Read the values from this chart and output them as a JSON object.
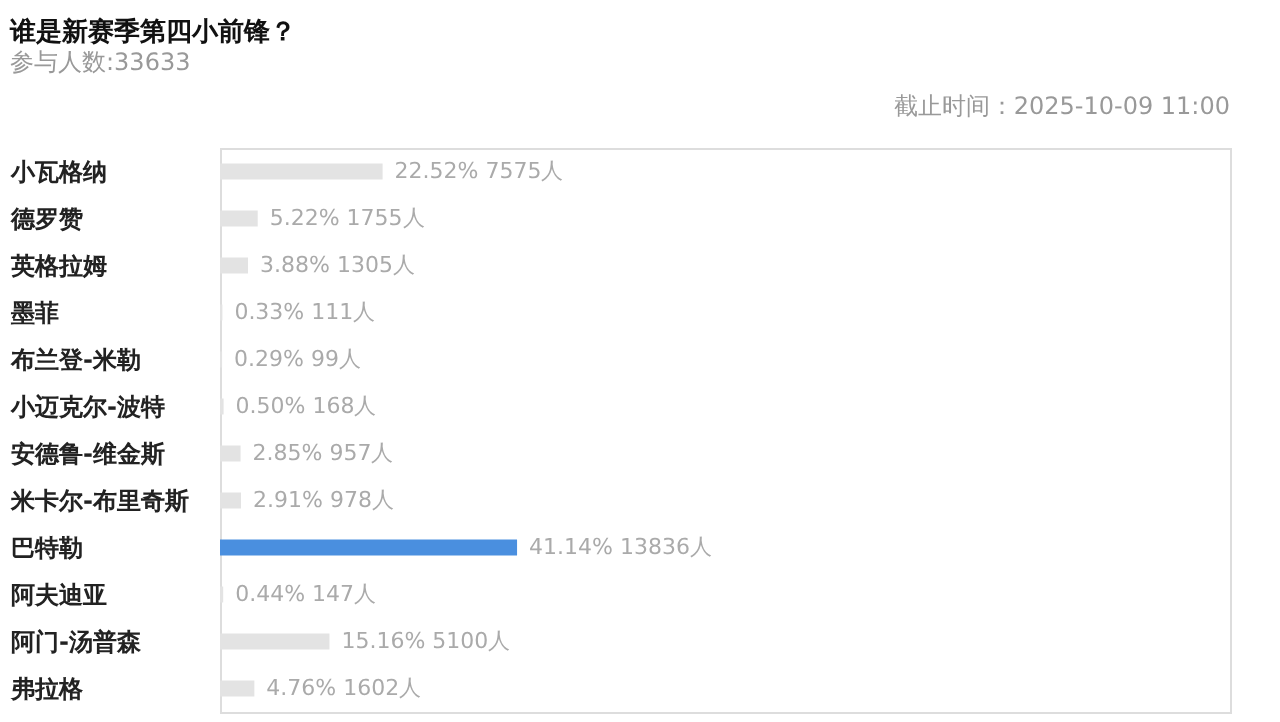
{
  "chart_data": {
    "type": "bar",
    "orientation": "horizontal",
    "title": "谁是新赛季第四小前锋？",
    "subtitle": "参与人数:33633",
    "annotations": [
      "截止时间：2025-10-09 11:00"
    ],
    "categories": [
      "小瓦格纳",
      "德罗赞",
      "英格拉姆",
      "墨菲",
      "布兰登-米勒",
      "小迈克尔-波特",
      "安德鲁-维金斯",
      "米卡尔-布里奇斯",
      "巴特勒",
      "阿夫迪亚",
      "阿门-汤普森",
      "弗拉格"
    ],
    "values": [
      22.52,
      5.22,
      3.88,
      0.33,
      0.29,
      0.5,
      2.85,
      2.91,
      41.14,
      0.44,
      15.16,
      4.76
    ],
    "colors": [
      "#e3e3e3",
      "#e3e3e3",
      "#e3e3e3",
      "#e3e3e3",
      "#e3e3e3",
      "#e3e3e3",
      "#e3e3e3",
      "#e3e3e3",
      "#4a8fdf",
      "#e3e3e3",
      "#e3e3e3",
      "#e3e3e3"
    ],
    "value_labels": [
      "22.52%  7575人",
      "5.22%  1755人",
      "3.88%  1305人",
      "0.33%  111人",
      "0.29%  99人",
      "0.50%  168人",
      "2.85%  957人",
      "2.91%  978人",
      "41.14%  13836人",
      "0.44%  147人",
      "15.16%  5100人",
      "4.76%  1602人"
    ],
    "tick_labels": "y"
  }
}
